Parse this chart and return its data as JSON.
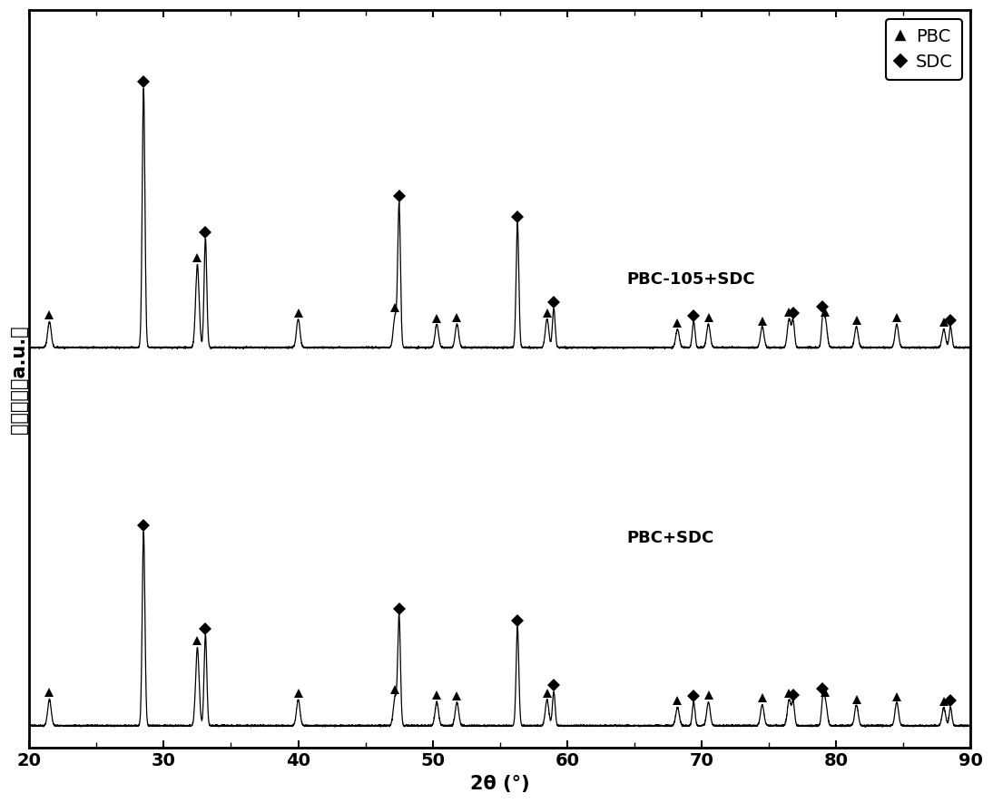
{
  "xlabel": "2θ (°)",
  "ylabel": "相对强度（a.u.）",
  "xlim": [
    20,
    90
  ],
  "xticks": [
    20,
    30,
    40,
    50,
    60,
    70,
    80,
    90
  ],
  "label1": "PBC-105+SDC",
  "label2": "PBC+SDC",
  "background": "#ffffff",
  "line_color": "#000000",
  "legend_pbc_label": "PBC",
  "legend_sdc_label": "SDC",
  "pbc_peaks": [
    21.5,
    32.5,
    40.0,
    47.2,
    50.3,
    51.8,
    58.5,
    68.2,
    70.5,
    74.5,
    76.5,
    79.2,
    81.5,
    84.5,
    88.0
  ],
  "sdc_peaks": [
    28.5,
    33.1,
    47.5,
    56.3,
    59.0,
    69.4,
    76.8,
    79.0,
    88.5
  ],
  "pbc_heights_top": [
    0.1,
    0.32,
    0.11,
    0.12,
    0.09,
    0.09,
    0.11,
    0.07,
    0.09,
    0.08,
    0.11,
    0.1,
    0.08,
    0.09,
    0.07
  ],
  "sdc_heights_top": [
    1.0,
    0.42,
    0.55,
    0.48,
    0.15,
    0.1,
    0.1,
    0.1,
    0.08
  ],
  "pbc_heights_bot": [
    0.1,
    0.3,
    0.1,
    0.11,
    0.09,
    0.09,
    0.1,
    0.07,
    0.09,
    0.08,
    0.1,
    0.09,
    0.08,
    0.09,
    0.07
  ],
  "sdc_heights_bot": [
    0.75,
    0.35,
    0.42,
    0.38,
    0.13,
    0.09,
    0.09,
    0.09,
    0.07
  ],
  "noise_level": 0.006,
  "sigma_sdc": 0.1,
  "sigma_pbc": 0.13,
  "title_fontsize": 13,
  "label_fontsize": 15,
  "tick_fontsize": 14
}
